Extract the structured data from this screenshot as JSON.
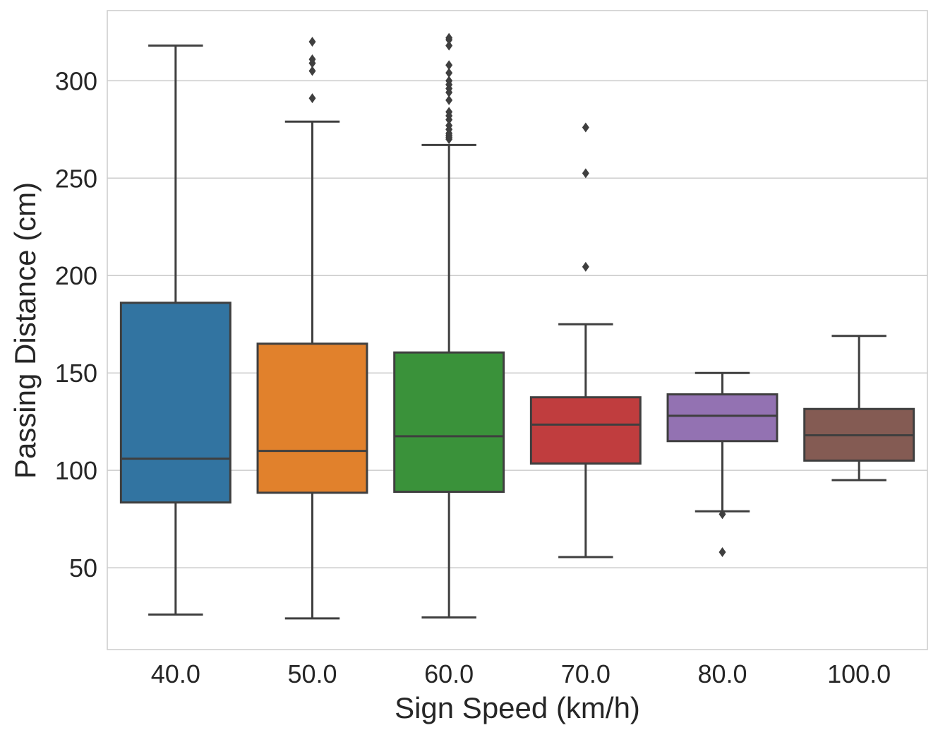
{
  "chart_data": {
    "type": "box",
    "xlabel": "Sign Speed (km/h)",
    "ylabel": "Passing Distance (cm)",
    "ylim": [
      8,
      336
    ],
    "yticks": [
      50,
      100,
      150,
      200,
      250,
      300
    ],
    "ytick_labels": [
      "50",
      "100",
      "150",
      "200",
      "250",
      "300"
    ],
    "grid": "horizontal",
    "categories": [
      "40.0",
      "50.0",
      "60.0",
      "70.0",
      "80.0",
      "100.0"
    ],
    "boxes": [
      {
        "label": "40.0",
        "color": "#3274a1",
        "whisker_low": 26,
        "q1": 83.5,
        "median": 106,
        "q3": 186,
        "whisker_high": 318,
        "outliers": []
      },
      {
        "label": "50.0",
        "color": "#e1812c",
        "whisker_low": 24,
        "q1": 88.5,
        "median": 110,
        "q3": 165,
        "whisker_high": 279,
        "outliers": [
          291,
          305,
          309,
          311,
          320
        ]
      },
      {
        "label": "60.0",
        "color": "#3a923a",
        "whisker_low": 24.5,
        "q1": 89,
        "median": 117.5,
        "q3": 160.5,
        "whisker_high": 267,
        "outliers": [
          270,
          271,
          272,
          273,
          275,
          277,
          280,
          282,
          284,
          290,
          294,
          296,
          298,
          300,
          304,
          308,
          318,
          321,
          322
        ]
      },
      {
        "label": "70.0",
        "color": "#c03d3e",
        "whisker_low": 55.5,
        "q1": 103.5,
        "median": 123.5,
        "q3": 137.5,
        "whisker_high": 175,
        "outliers": [
          204.5,
          252.5,
          276
        ]
      },
      {
        "label": "80.0",
        "color": "#9372b2",
        "whisker_low": 79,
        "q1": 115,
        "median": 128,
        "q3": 139,
        "whisker_high": 150,
        "outliers": [
          58,
          77.5
        ]
      },
      {
        "label": "100.0",
        "color": "#845b53",
        "whisker_low": 95,
        "q1": 105,
        "median": 118,
        "q3": 131.5,
        "whisker_high": 169,
        "outliers": []
      }
    ]
  }
}
